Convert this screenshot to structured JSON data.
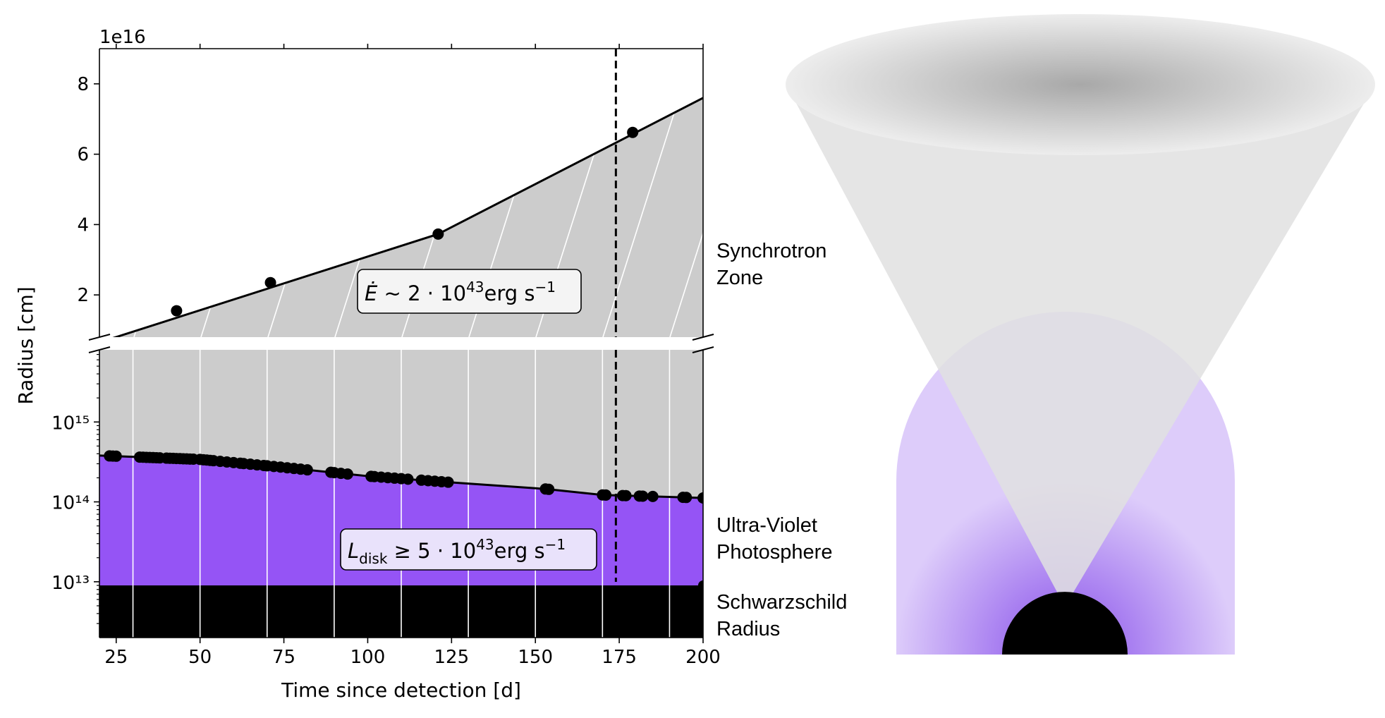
{
  "chart_data": [
    {
      "type": "line",
      "panel": "upper",
      "xlim": [
        20,
        200
      ],
      "ylim": [
        0.8,
        9.0
      ],
      "y_offset_label": "1e16",
      "xticks": [
        25,
        50,
        75,
        100,
        125,
        150,
        175,
        200
      ],
      "yticks": [
        2,
        4,
        6,
        8
      ],
      "ytick_labels": [
        "2",
        "4",
        "6",
        "8"
      ],
      "ylabel": "Radius [cm]",
      "points": [
        {
          "x": 43,
          "y": 1.55
        },
        {
          "x": 71,
          "y": 2.35
        },
        {
          "x": 121,
          "y": 3.73
        },
        {
          "x": 179,
          "y": 6.62
        }
      ],
      "line": [
        {
          "x": 20,
          "y": 0.65
        },
        {
          "x": 121,
          "y": 3.73
        },
        {
          "x": 200,
          "y": 7.6
        }
      ],
      "fill_color": "#cccccc",
      "vline_x": 174,
      "annotation": {
        "x": 120,
        "y": 1.9,
        "text": "Ė ~ 2 · 10⁴³erg s⁻¹"
      },
      "region_label": {
        "line1": "Synchrotron",
        "line2": "Zone"
      }
    },
    {
      "type": "line",
      "panel": "lower",
      "xlim": [
        20,
        200
      ],
      "ylim": [
        2000000000000.0,
        8000000000000000.0
      ],
      "yscale": "log",
      "xticks": [
        25,
        50,
        75,
        100,
        125,
        150,
        175,
        200
      ],
      "xtick_labels": [
        "25",
        "50",
        "75",
        "100",
        "125",
        "150",
        "175",
        "200"
      ],
      "yticks": [
        10000000000000.0,
        100000000000000.0,
        1000000000000000.0
      ],
      "ytick_labels": [
        "10¹³",
        "10¹⁴",
        "10¹⁵"
      ],
      "xlabel": "Time since detection [d]",
      "photosphere_points_x": [
        23,
        24,
        25,
        32,
        33,
        34,
        35,
        36,
        37,
        38,
        40,
        41,
        42,
        43,
        44,
        45,
        46,
        47,
        48,
        50,
        51,
        52,
        53,
        54,
        56,
        58,
        60,
        62,
        63,
        65,
        67,
        69,
        70,
        72,
        74,
        76,
        78,
        80,
        82,
        89,
        90,
        92,
        94,
        101,
        102,
        104,
        106,
        108,
        110,
        112,
        116,
        118,
        120,
        122,
        124,
        153,
        154,
        170,
        171,
        176,
        177,
        181,
        182,
        185,
        194,
        195,
        200
      ],
      "photosphere_line": [
        {
          "x": 20,
          "y": 380000000000000.0
        },
        {
          "x": 50,
          "y": 340000000000000.0
        },
        {
          "x": 75,
          "y": 270000000000000.0
        },
        {
          "x": 100,
          "y": 210000000000000.0
        },
        {
          "x": 125,
          "y": 175000000000000.0
        },
        {
          "x": 153,
          "y": 145000000000000.0
        },
        {
          "x": 170,
          "y": 122000000000000.0
        },
        {
          "x": 200,
          "y": 112000000000000.0
        }
      ],
      "schwarzschild_radius": 9000000000000.0,
      "photosphere_color": "#9554f5",
      "schwarzschild_color": "#000000",
      "upper_fill_color": "#cccccc",
      "vline_x": 174,
      "annotation": {
        "x": 118,
        "y": 13000000000000.0,
        "text": "L_disk ≥ 5 · 10⁴³erg s⁻¹"
      },
      "region_labels": [
        {
          "line1": "Ultra-Violet",
          "line2": "Photosphere"
        },
        {
          "line1": "Schwarzschild",
          "line2": "Radius"
        }
      ]
    }
  ],
  "diagram": {
    "cone_color": "#e0e0e0",
    "ellipse_dark": "#a8a8a8",
    "ellipse_light": "#ededed",
    "halo_inner": "#9a62ee",
    "halo_outer": "#ddccfa",
    "black_hole_color": "#000000"
  }
}
